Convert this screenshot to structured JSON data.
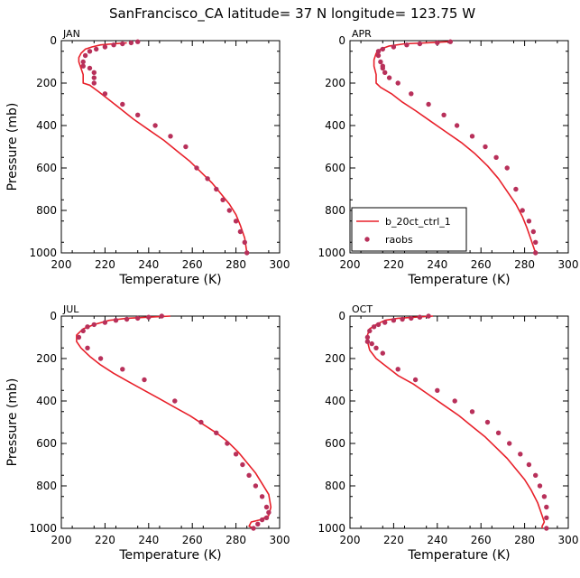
{
  "figure": {
    "title": "SanFrancisco_CA  latitude= 37 N longitude= 123.75 W"
  },
  "legend": {
    "model_label": "b_20ct_ctrl_1",
    "obs_label": "raobs"
  },
  "colors": {
    "model_line": "#e8202a",
    "obs_marker": "#b8305a",
    "axis": "#000000"
  },
  "chart_data": [
    {
      "type": "line",
      "panel": "JAN",
      "xlabel": "Temperature (K)",
      "ylabel": "Pressure (mb)",
      "xlim": [
        200,
        300
      ],
      "ylim": [
        1000,
        0
      ],
      "xticks": [
        "200",
        "220",
        "240",
        "260",
        "280",
        "300"
      ],
      "yticks": [
        "0",
        "200",
        "400",
        "600",
        "800",
        "1000"
      ],
      "series": [
        {
          "name": "b_20ct_ctrl_1",
          "kind": "line",
          "x": [
            230,
            224,
            218,
            214,
            211,
            209,
            208,
            208,
            209,
            210,
            210,
            213,
            217,
            222,
            227,
            233,
            240,
            247,
            253,
            259,
            264,
            269,
            273,
            277,
            280,
            282,
            284,
            285
          ],
          "y": [
            10,
            15,
            20,
            30,
            40,
            60,
            80,
            100,
            130,
            160,
            200,
            210,
            240,
            280,
            320,
            370,
            420,
            470,
            520,
            570,
            620,
            670,
            720,
            770,
            820,
            870,
            930,
            1000
          ]
        },
        {
          "name": "raobs",
          "kind": "scatter",
          "x": [
            235,
            232,
            228,
            224,
            220,
            216,
            213,
            211,
            210,
            210,
            213,
            215,
            215,
            215,
            220,
            228,
            235,
            243,
            250,
            257,
            262,
            267,
            271,
            274,
            277,
            280,
            282,
            284,
            285
          ],
          "y": [
            5,
            10,
            15,
            20,
            30,
            40,
            50,
            70,
            100,
            120,
            130,
            150,
            175,
            200,
            250,
            300,
            350,
            400,
            450,
            500,
            600,
            650,
            700,
            750,
            800,
            850,
            900,
            950,
            1000
          ]
        }
      ]
    },
    {
      "type": "line",
      "panel": "APR",
      "xlabel": "Temperature (K)",
      "ylabel": "",
      "xlim": [
        200,
        300
      ],
      "ylim": [
        1000,
        0
      ],
      "xticks": [
        "200",
        "220",
        "240",
        "260",
        "280",
        "300"
      ],
      "yticks": [
        "0",
        "200",
        "400",
        "600",
        "800",
        "1000"
      ],
      "legend_position": "lower-left",
      "series": [
        {
          "name": "b_20ct_ctrl_1",
          "kind": "line",
          "x": [
            245,
            235,
            225,
            218,
            214,
            212,
            211,
            211,
            212,
            212,
            214,
            219,
            224,
            230,
            237,
            244,
            251,
            257,
            263,
            268,
            272,
            276,
            279,
            281,
            283,
            285
          ],
          "y": [
            5,
            10,
            15,
            25,
            40,
            60,
            90,
            120,
            160,
            200,
            220,
            250,
            290,
            330,
            380,
            430,
            480,
            530,
            590,
            650,
            710,
            770,
            830,
            880,
            940,
            1000
          ]
        },
        {
          "name": "raobs",
          "kind": "scatter",
          "x": [
            246,
            240,
            232,
            226,
            220,
            215,
            213,
            213,
            214,
            215,
            215,
            216,
            218,
            222,
            228,
            236,
            243,
            249,
            256,
            262,
            267,
            272,
            276,
            279,
            282,
            284,
            285,
            285
          ],
          "y": [
            5,
            10,
            15,
            20,
            30,
            40,
            50,
            70,
            100,
            120,
            130,
            150,
            175,
            200,
            250,
            300,
            350,
            400,
            450,
            500,
            550,
            600,
            700,
            800,
            850,
            900,
            950,
            1000
          ]
        }
      ]
    },
    {
      "type": "line",
      "panel": "JUL",
      "xlabel": "Temperature (K)",
      "ylabel": "Pressure (mb)",
      "xlim": [
        200,
        300
      ],
      "ylim": [
        1000,
        0
      ],
      "xticks": [
        "200",
        "220",
        "240",
        "260",
        "280",
        "300"
      ],
      "yticks": [
        "0",
        "200",
        "400",
        "600",
        "800",
        "1000"
      ],
      "series": [
        {
          "name": "b_20ct_ctrl_1",
          "kind": "line",
          "x": [
            250,
            240,
            230,
            222,
            215,
            210,
            207,
            207,
            209,
            213,
            218,
            224,
            231,
            238,
            245,
            252,
            259,
            265,
            271,
            276,
            281,
            285,
            289,
            292,
            295,
            296,
            295,
            291,
            287,
            286,
            288
          ],
          "y": [
            0,
            5,
            10,
            20,
            40,
            60,
            90,
            120,
            150,
            190,
            230,
            270,
            310,
            350,
            390,
            430,
            470,
            510,
            550,
            590,
            640,
            690,
            740,
            790,
            840,
            900,
            940,
            960,
            970,
            990,
            1000
          ]
        },
        {
          "name": "raobs",
          "kind": "scatter",
          "x": [
            246,
            240,
            235,
            230,
            225,
            220,
            215,
            212,
            210,
            208,
            212,
            218,
            228,
            238,
            252,
            264,
            271,
            276,
            280,
            283,
            286,
            289,
            292,
            294,
            295,
            294,
            292,
            290,
            288
          ],
          "y": [
            0,
            5,
            10,
            15,
            20,
            30,
            40,
            50,
            70,
            100,
            150,
            200,
            250,
            300,
            400,
            500,
            550,
            600,
            650,
            700,
            750,
            800,
            850,
            900,
            925,
            950,
            960,
            980,
            1000
          ]
        }
      ]
    },
    {
      "type": "line",
      "panel": "OCT",
      "xlabel": "Temperature (K)",
      "ylabel": "",
      "xlim": [
        200,
        300
      ],
      "ylim": [
        1000,
        0
      ],
      "xticks": [
        "200",
        "220",
        "240",
        "260",
        "280",
        "300"
      ],
      "yticks": [
        "0",
        "200",
        "400",
        "600",
        "800",
        "1000"
      ],
      "series": [
        {
          "name": "b_20ct_ctrl_1",
          "kind": "line",
          "x": [
            238,
            230,
            222,
            216,
            212,
            209,
            208,
            208,
            209,
            212,
            217,
            222,
            229,
            236,
            243,
            250,
            256,
            262,
            267,
            272,
            276,
            280,
            283,
            286,
            288,
            289,
            288,
            288
          ],
          "y": [
            0,
            5,
            10,
            20,
            40,
            60,
            90,
            120,
            160,
            200,
            240,
            280,
            320,
            370,
            420,
            470,
            520,
            570,
            620,
            670,
            720,
            770,
            820,
            880,
            940,
            970,
            990,
            1000
          ]
        },
        {
          "name": "raobs",
          "kind": "scatter",
          "x": [
            236,
            232,
            228,
            224,
            220,
            216,
            213,
            211,
            209,
            208,
            208,
            210,
            212,
            215,
            222,
            230,
            240,
            248,
            256,
            263,
            268,
            273,
            278,
            282,
            285,
            287,
            289,
            290,
            290,
            290
          ],
          "y": [
            0,
            5,
            10,
            15,
            20,
            30,
            40,
            50,
            70,
            100,
            120,
            130,
            150,
            175,
            250,
            300,
            350,
            400,
            450,
            500,
            550,
            600,
            650,
            700,
            750,
            800,
            850,
            900,
            950,
            1000
          ]
        }
      ]
    }
  ]
}
